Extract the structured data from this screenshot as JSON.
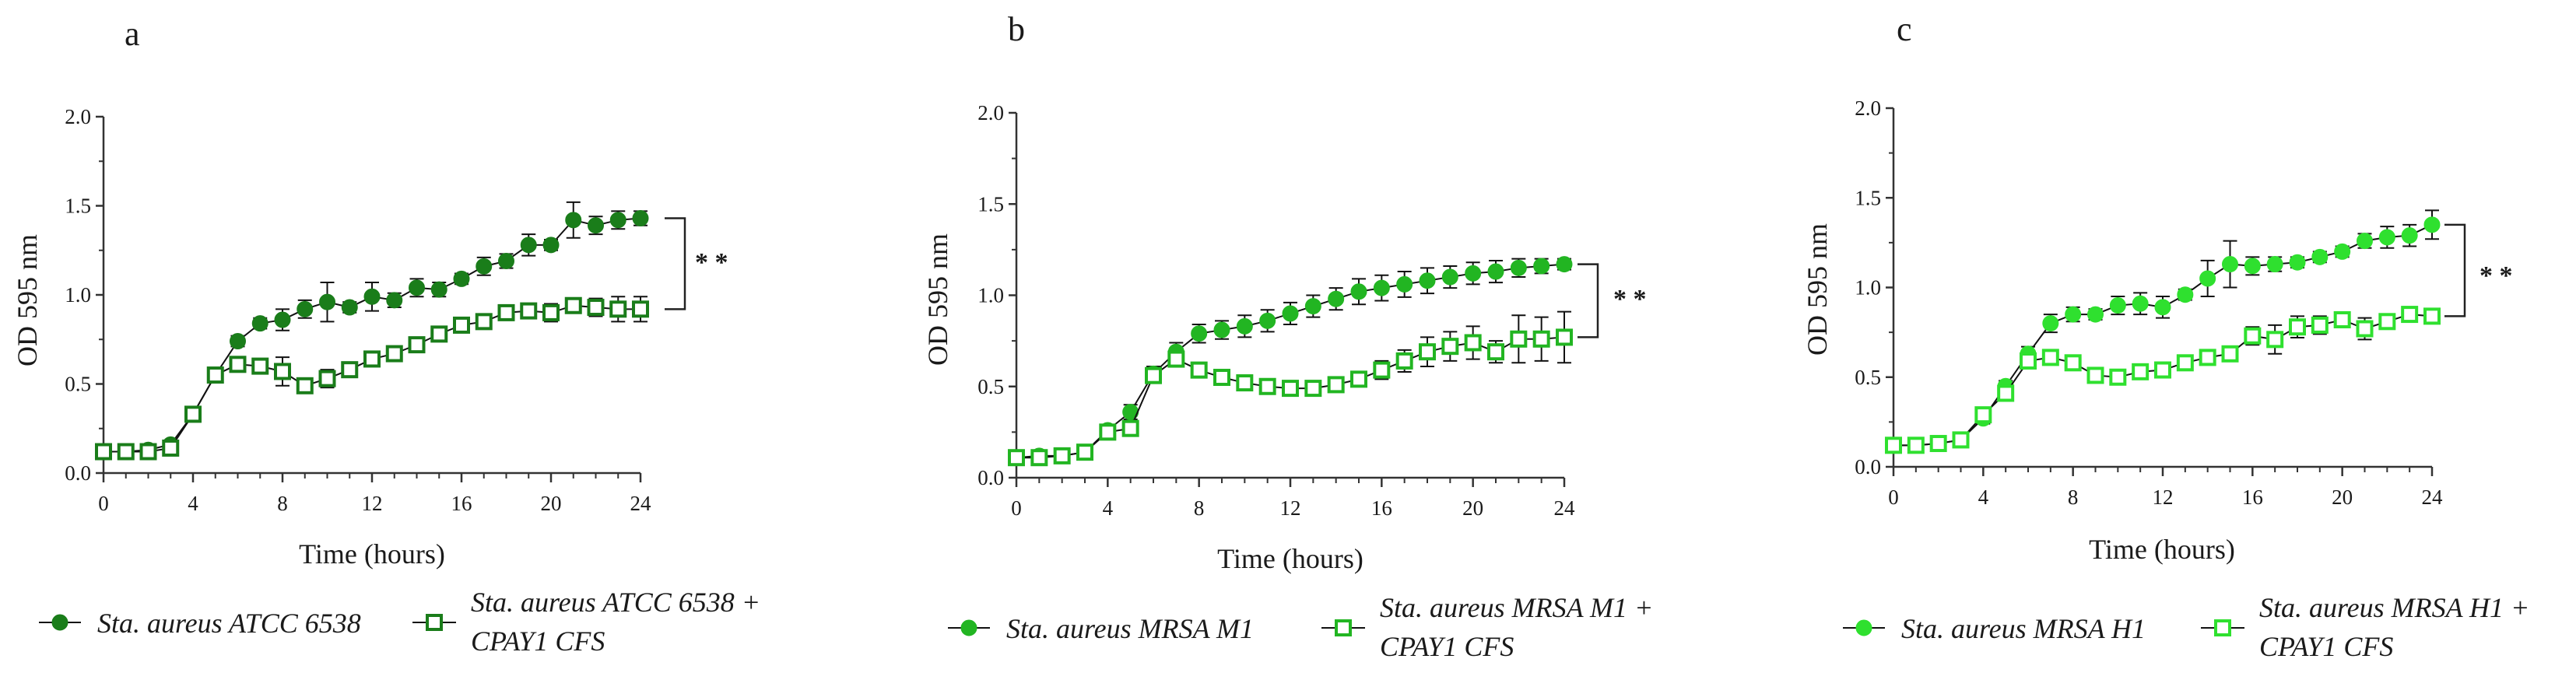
{
  "chart_data": [
    {
      "type": "line",
      "panel": "a",
      "xlabel": "Time (hours)",
      "ylabel": "OD 595 nm",
      "xlim": [
        0,
        24
      ],
      "ylim": [
        0,
        2.0
      ],
      "xticks": [
        0,
        4,
        8,
        12,
        16,
        20,
        24
      ],
      "yticks": [
        "0.0",
        "0.5",
        "1.0",
        "1.5",
        "2.0"
      ],
      "color": "#1a7d1a",
      "x": [
        0,
        1,
        2,
        3,
        4,
        5,
        6,
        7,
        8,
        9,
        10,
        11,
        12,
        13,
        14,
        15,
        16,
        17,
        18,
        19,
        20,
        21,
        22,
        23,
        24
      ],
      "series": [
        {
          "name": "Sta. aureus ATCC 6538",
          "marker": "filled-circle",
          "values": [
            0.12,
            0.12,
            0.13,
            0.16,
            0.33,
            0.55,
            0.74,
            0.84,
            0.86,
            0.92,
            0.96,
            0.93,
            0.99,
            0.97,
            1.04,
            1.03,
            1.09,
            1.16,
            1.19,
            1.28,
            1.28,
            1.42,
            1.39,
            1.42,
            1.43
          ],
          "errors": [
            0.01,
            0.01,
            0.01,
            0.02,
            0.02,
            0.03,
            0.03,
            0.03,
            0.06,
            0.05,
            0.11,
            0.03,
            0.08,
            0.04,
            0.05,
            0.04,
            0.03,
            0.05,
            0.04,
            0.06,
            0.03,
            0.1,
            0.05,
            0.05,
            0.04
          ]
        },
        {
          "name_line1": "Sta. aureus ATCC 6538 +",
          "name_line2": "CPAY1 CFS",
          "marker": "open-square",
          "values": [
            0.12,
            0.12,
            0.12,
            0.14,
            0.33,
            0.55,
            0.61,
            0.6,
            0.57,
            0.49,
            0.53,
            0.58,
            0.64,
            0.67,
            0.72,
            0.78,
            0.83,
            0.85,
            0.9,
            0.91,
            0.9,
            0.94,
            0.93,
            0.92,
            0.92
          ],
          "errors": [
            0.01,
            0.01,
            0.01,
            0.01,
            0.02,
            0.03,
            0.04,
            0.04,
            0.08,
            0.04,
            0.05,
            0.04,
            0.03,
            0.03,
            0.03,
            0.03,
            0.03,
            0.03,
            0.03,
            0.03,
            0.05,
            0.04,
            0.05,
            0.07,
            0.07
          ]
        }
      ],
      "significance": "* *"
    },
    {
      "type": "line",
      "panel": "b",
      "xlabel": "Time (hours)",
      "ylabel": "OD 595 nm",
      "xlim": [
        0,
        24
      ],
      "ylim": [
        0,
        2.0
      ],
      "xticks": [
        0,
        4,
        8,
        12,
        16,
        20,
        24
      ],
      "yticks": [
        "0.0",
        "0.5",
        "1.0",
        "1.5",
        "2.0"
      ],
      "color": "#22b522",
      "x": [
        0,
        1,
        2,
        3,
        4,
        5,
        6,
        7,
        8,
        9,
        10,
        11,
        12,
        13,
        14,
        15,
        16,
        17,
        18,
        19,
        20,
        21,
        22,
        23,
        24
      ],
      "series": [
        {
          "name": "Sta. aureus MRSA M1",
          "marker": "filled-circle",
          "values": [
            0.11,
            0.12,
            0.12,
            0.14,
            0.26,
            0.36,
            0.57,
            0.69,
            0.79,
            0.81,
            0.83,
            0.86,
            0.9,
            0.94,
            0.98,
            1.02,
            1.04,
            1.06,
            1.08,
            1.1,
            1.12,
            1.13,
            1.15,
            1.16,
            1.17
          ],
          "errors": [
            0.01,
            0.01,
            0.01,
            0.01,
            0.03,
            0.04,
            0.04,
            0.05,
            0.05,
            0.05,
            0.06,
            0.06,
            0.06,
            0.06,
            0.06,
            0.07,
            0.07,
            0.07,
            0.07,
            0.06,
            0.06,
            0.06,
            0.05,
            0.04,
            0.03
          ]
        },
        {
          "name_line1": "Sta. aureus MRSA M1 +",
          "name_line2": "CPAY1 CFS",
          "marker": "open-square",
          "values": [
            0.11,
            0.11,
            0.12,
            0.14,
            0.25,
            0.27,
            0.56,
            0.65,
            0.59,
            0.55,
            0.52,
            0.5,
            0.49,
            0.49,
            0.51,
            0.54,
            0.59,
            0.64,
            0.69,
            0.72,
            0.74,
            0.69,
            0.76,
            0.76,
            0.77
          ],
          "errors": [
            0.01,
            0.01,
            0.01,
            0.01,
            0.02,
            0.03,
            0.04,
            0.04,
            0.04,
            0.03,
            0.03,
            0.03,
            0.03,
            0.03,
            0.03,
            0.04,
            0.05,
            0.06,
            0.08,
            0.08,
            0.09,
            0.06,
            0.13,
            0.12,
            0.14
          ]
        }
      ],
      "significance": "* *"
    },
    {
      "type": "line",
      "panel": "c",
      "xlabel": "Time (hours)",
      "ylabel": "OD 595 nm",
      "xlim": [
        0,
        24
      ],
      "ylim": [
        0,
        2.0
      ],
      "xticks": [
        0,
        4,
        8,
        12,
        16,
        20,
        24
      ],
      "yticks": [
        "0.0",
        "0.5",
        "1.0",
        "1.5",
        "2.0"
      ],
      "color": "#2fe02f",
      "x": [
        0,
        1,
        2,
        3,
        4,
        5,
        6,
        7,
        8,
        9,
        10,
        11,
        12,
        13,
        14,
        15,
        16,
        17,
        18,
        19,
        20,
        21,
        22,
        23,
        24
      ],
      "series": [
        {
          "name": "Sta. aureus MRSA H1",
          "marker": "filled-circle",
          "values": [
            0.12,
            0.12,
            0.13,
            0.15,
            0.27,
            0.45,
            0.63,
            0.8,
            0.85,
            0.85,
            0.9,
            0.91,
            0.89,
            0.96,
            1.05,
            1.13,
            1.12,
            1.13,
            1.14,
            1.17,
            1.2,
            1.26,
            1.28,
            1.29,
            1.35
          ],
          "errors": [
            0.01,
            0.01,
            0.01,
            0.01,
            0.03,
            0.03,
            0.04,
            0.05,
            0.04,
            0.03,
            0.05,
            0.06,
            0.06,
            0.03,
            0.1,
            0.13,
            0.05,
            0.04,
            0.03,
            0.03,
            0.03,
            0.04,
            0.06,
            0.06,
            0.08
          ]
        },
        {
          "name_line1": "Sta. aureus MRSA H1 +",
          "name_line2": "CPAY1 CFS",
          "marker": "open-square",
          "values": [
            0.12,
            0.12,
            0.13,
            0.15,
            0.29,
            0.41,
            0.59,
            0.61,
            0.58,
            0.51,
            0.5,
            0.53,
            0.54,
            0.58,
            0.61,
            0.63,
            0.73,
            0.71,
            0.78,
            0.79,
            0.82,
            0.77,
            0.81,
            0.85,
            0.84
          ],
          "errors": [
            0.01,
            0.01,
            0.01,
            0.02,
            0.03,
            0.03,
            0.04,
            0.04,
            0.03,
            0.03,
            0.03,
            0.03,
            0.04,
            0.03,
            0.03,
            0.03,
            0.05,
            0.08,
            0.06,
            0.05,
            0.03,
            0.06,
            0.03,
            0.03,
            0.03
          ]
        }
      ],
      "significance": "* *"
    }
  ]
}
